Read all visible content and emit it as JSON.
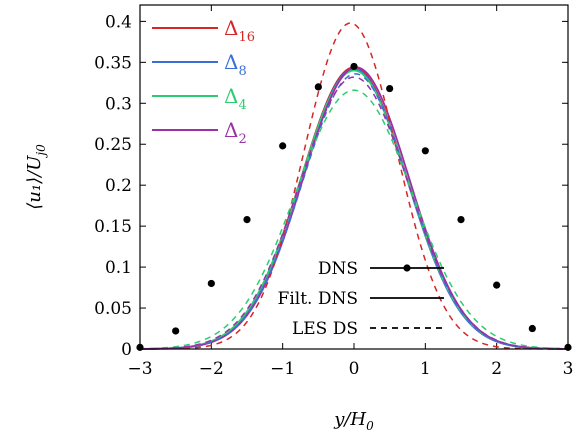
{
  "chart_data": {
    "type": "line",
    "xlabel": "y/H",
    "xlabel_sub": "0",
    "ylabel": "⟨u₁⟩/U",
    "ylabel_sub": "j0",
    "xlim": [
      -3,
      3
    ],
    "ylim": [
      0,
      0.42
    ],
    "x_ticks": [
      -3,
      -2,
      -1,
      0,
      1,
      2,
      3
    ],
    "x_tick_labels": [
      "−3",
      "−2",
      "−1",
      "0",
      "1",
      "2",
      "3"
    ],
    "y_ticks": [
      0,
      0.05,
      0.1,
      0.15,
      0.2,
      0.25,
      0.3,
      0.35,
      0.4
    ],
    "y_tick_labels": [
      "0",
      "0.05",
      "0.1",
      "0.15",
      "0.2",
      "0.25",
      "0.3",
      "0.35",
      "0.4"
    ],
    "colored_legend": [
      {
        "name": "Δ",
        "sub": "16",
        "color": "#d62728"
      },
      {
        "name": "Δ",
        "sub": "8",
        "color": "#3a6fd8"
      },
      {
        "name": "Δ",
        "sub": "4",
        "color": "#2ecc71"
      },
      {
        "name": "Δ",
        "sub": "2",
        "color": "#9b30a8"
      }
    ],
    "style_legend": [
      {
        "label": "DNS",
        "style": "line-with-dots"
      },
      {
        "label": "Filt. DNS",
        "style": "solid"
      },
      {
        "label": "LES DS",
        "style": "dashed"
      }
    ],
    "dns_points": {
      "x": [
        -3,
        -2.5,
        -2,
        -1.5,
        -1,
        -0.5,
        0,
        0.5,
        1,
        1.5,
        2,
        2.5,
        3
      ],
      "y": [
        0.002,
        0.022,
        0.08,
        0.158,
        0.248,
        0.32,
        0.345,
        0.318,
        0.242,
        0.158,
        0.078,
        0.025,
        0.002
      ]
    },
    "series": [
      {
        "name": "Δ16",
        "style": "solid",
        "color": "#d62728",
        "amp": 0.344,
        "shift": 0.0,
        "width": 1.05
      },
      {
        "name": "Δ8",
        "style": "solid",
        "color": "#3a6fd8",
        "amp": 0.342,
        "shift": 0.0,
        "width": 1.05
      },
      {
        "name": "Δ4",
        "style": "solid",
        "color": "#2ecc71",
        "amp": 0.34,
        "shift": 0.0,
        "width": 1.06
      },
      {
        "name": "Δ2",
        "style": "solid",
        "color": "#9b30a8",
        "amp": 0.344,
        "shift": 0.03,
        "width": 1.05
      },
      {
        "name": "Δ16",
        "style": "dashed",
        "color": "#d62728",
        "amp": 0.398,
        "shift": -0.05,
        "width": 0.92
      },
      {
        "name": "Δ8",
        "style": "dashed",
        "color": "#3a6fd8",
        "amp": 0.336,
        "shift": 0.02,
        "width": 1.05
      },
      {
        "name": "Δ4",
        "style": "dashed",
        "color": "#2ecc71",
        "amp": 0.316,
        "shift": 0.0,
        "width": 1.15
      },
      {
        "name": "Δ2",
        "style": "dashed",
        "color": "#9b30a8",
        "amp": 0.332,
        "shift": 0.0,
        "width": 1.08
      }
    ]
  }
}
